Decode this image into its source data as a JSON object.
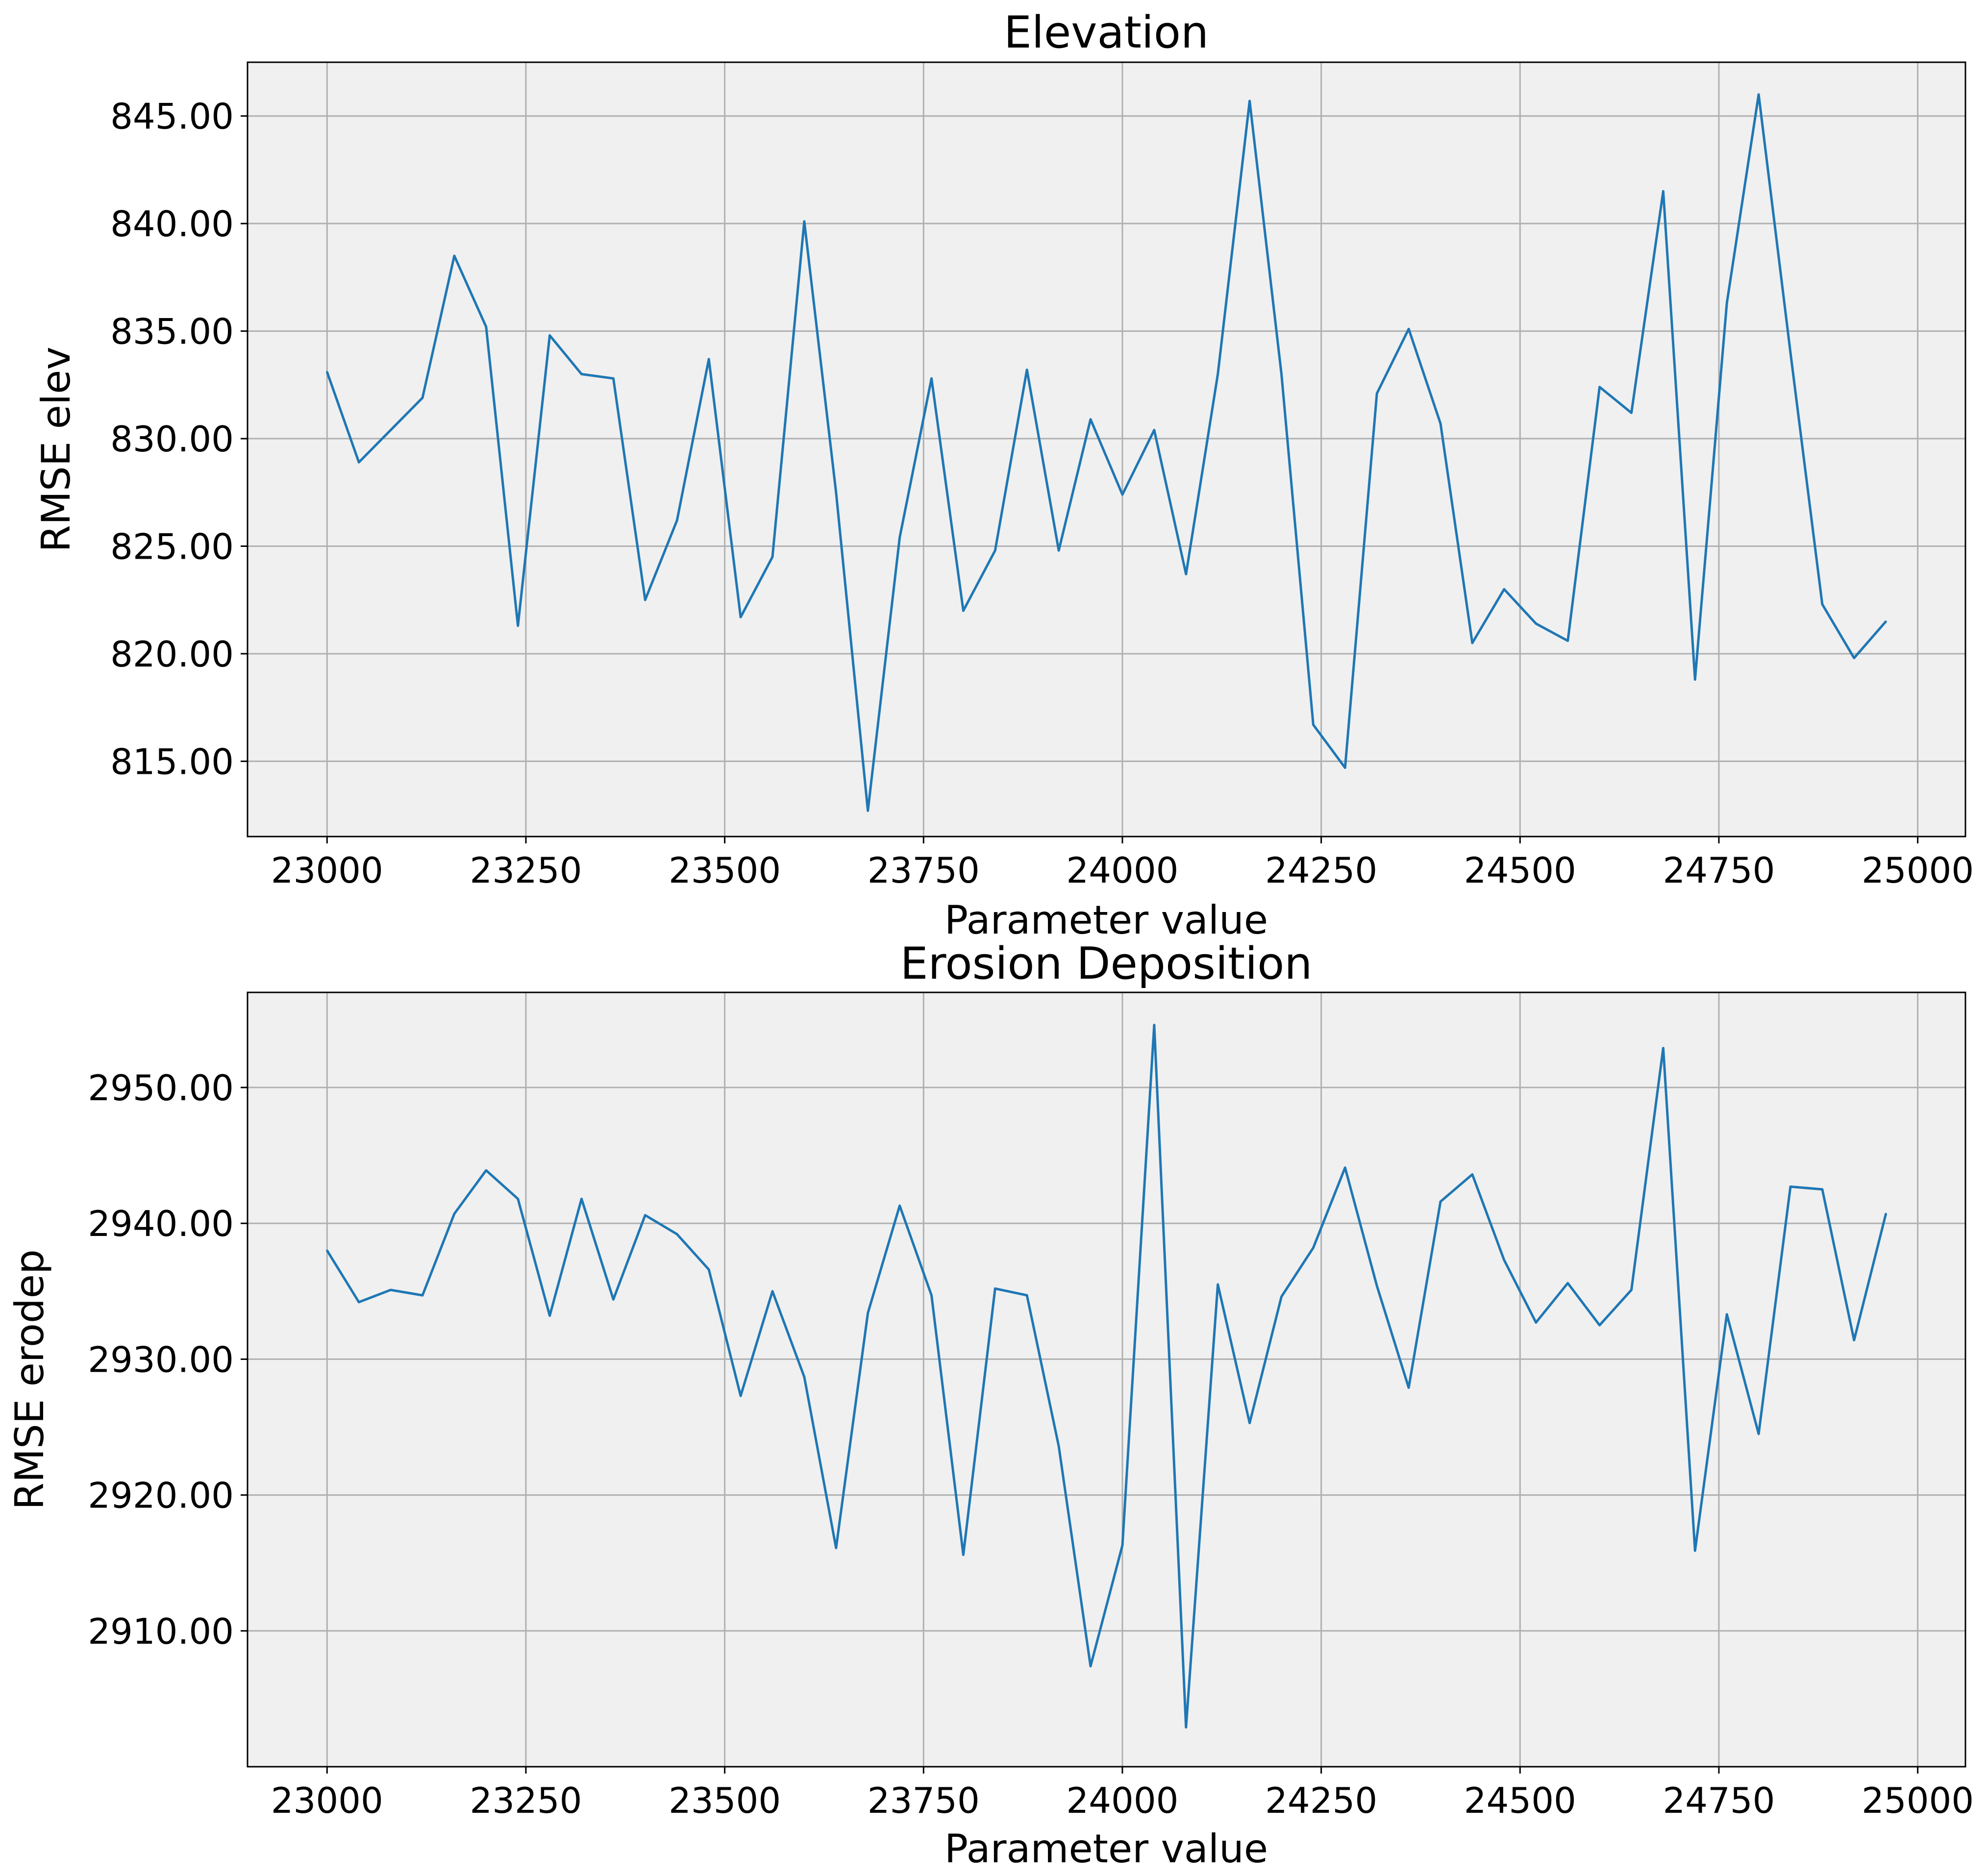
{
  "chart_data": [
    {
      "type": "line",
      "title": "Elevation",
      "xlabel": "Parameter value",
      "ylabel": "RMSE elev",
      "xlim": [
        22900,
        25060
      ],
      "ylim": [
        811.5,
        847.5
      ],
      "xticks": [
        23000,
        23250,
        23500,
        23750,
        24000,
        24250,
        24500,
        24750,
        25000
      ],
      "xtick_labels": [
        "23000",
        "23250",
        "23500",
        "23750",
        "24000",
        "24250",
        "24500",
        "24750",
        "25000"
      ],
      "yticks": [
        815,
        820,
        825,
        830,
        835,
        840,
        845
      ],
      "ytick_labels": [
        "815.00",
        "820.00",
        "825.00",
        "830.00",
        "835.00",
        "840.00",
        "845.00"
      ],
      "grid": true,
      "background": "#f0f0f0",
      "line_color": "#1f77b4",
      "series": [
        {
          "x": [
            23000,
            23040,
            23080,
            23120,
            23160,
            23200,
            23240,
            23280,
            23320,
            23360,
            23400,
            23440,
            23480,
            23520,
            23560,
            23600,
            23640,
            23680,
            23720,
            23760,
            23800,
            23840,
            23880,
            23920,
            23960,
            24000,
            24040,
            24080,
            24120,
            24160,
            24200,
            24240,
            24280,
            24320,
            24360,
            24400,
            24440,
            24480,
            24520,
            24560,
            24600,
            24640,
            24680,
            24720,
            24760,
            24800,
            24840,
            24880,
            24920,
            24960
          ],
          "values": [
            833.1,
            828.9,
            830.4,
            831.9,
            838.5,
            835.2,
            821.3,
            834.8,
            833.0,
            832.8,
            822.5,
            826.2,
            833.7,
            821.7,
            824.5,
            840.1,
            827.5,
            812.7,
            825.4,
            832.8,
            822.0,
            824.8,
            833.2,
            824.8,
            830.9,
            827.4,
            830.4,
            823.7,
            833.0,
            845.7,
            833.0,
            816.7,
            814.7,
            832.1,
            835.1,
            830.7,
            820.5,
            823.0,
            821.4,
            820.6,
            832.4,
            831.2,
            841.5,
            818.8,
            836.3,
            846.0,
            834.0,
            822.3,
            819.8,
            821.5
          ]
        }
      ]
    },
    {
      "type": "line",
      "title": "Erosion Deposition",
      "xlabel": "Parameter value",
      "ylabel": "RMSE erodep",
      "xlim": [
        22900,
        25060
      ],
      "ylim": [
        2900,
        2957
      ],
      "xticks": [
        23000,
        23250,
        23500,
        23750,
        24000,
        24250,
        24500,
        24750,
        25000
      ],
      "xtick_labels": [
        "23000",
        "23250",
        "23500",
        "23750",
        "24000",
        "24250",
        "24500",
        "24750",
        "25000"
      ],
      "yticks": [
        2910,
        2920,
        2930,
        2940,
        2950
      ],
      "ytick_labels": [
        "2910.00",
        "2920.00",
        "2930.00",
        "2940.00",
        "2950.00"
      ],
      "grid": true,
      "background": "#f0f0f0",
      "line_color": "#1f77b4",
      "series": [
        {
          "x": [
            23000,
            23040,
            23080,
            23120,
            23160,
            23200,
            23240,
            23280,
            23320,
            23360,
            23400,
            23440,
            23480,
            23520,
            23560,
            23600,
            23640,
            23680,
            23720,
            23760,
            23800,
            23840,
            23880,
            23920,
            23960,
            24000,
            24040,
            24080,
            24120,
            24160,
            24200,
            24240,
            24280,
            24320,
            24360,
            24400,
            24440,
            24480,
            24520,
            24560,
            24600,
            24640,
            24680,
            24720,
            24760,
            24800,
            24840,
            24880,
            24920,
            24960
          ],
          "values": [
            2938.0,
            2934.2,
            2935.1,
            2934.7,
            2940.7,
            2943.9,
            2941.8,
            2933.2,
            2941.8,
            2934.4,
            2940.6,
            2939.2,
            2936.6,
            2927.3,
            2935.0,
            2928.7,
            2916.1,
            2933.4,
            2941.3,
            2934.7,
            2915.6,
            2935.2,
            2934.7,
            2923.6,
            2907.4,
            2916.3,
            2954.6,
            2902.9,
            2935.5,
            2925.3,
            2934.6,
            2938.2,
            2944.1,
            2935.4,
            2927.9,
            2941.6,
            2943.6,
            2937.3,
            2932.7,
            2935.6,
            2932.5,
            2935.1,
            2952.9,
            2915.9,
            2933.3,
            2924.5,
            2942.7,
            2942.5,
            2931.4,
            2940.7
          ]
        }
      ]
    }
  ]
}
